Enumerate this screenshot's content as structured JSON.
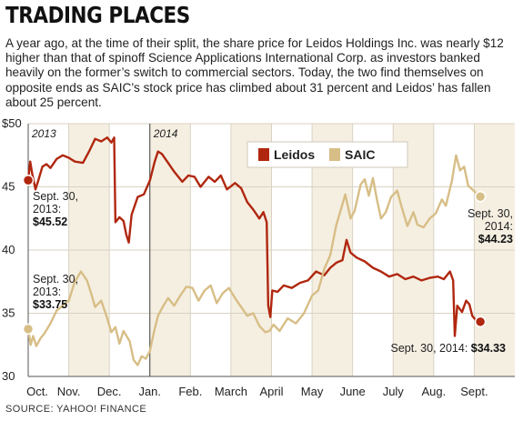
{
  "header": {
    "title": "TRADING PLACES",
    "subtitle": "A year ago, at the time of their split, the share price for Leidos Holdings Inc. was nearly $12 higher than that of spinoff Science Applications International Corp. as investors banked heavily on the former’s switch to commercial sectors. Today, the two find themselves on opposite ends as SAIC’s stock price has climbed about 31 percent and Leidos’ has fallen about 25 percent.",
    "source": "SOURCE: YAHOO! FINANCE"
  },
  "colors": {
    "leidos": "#b0270f",
    "saic": "#d7be86",
    "band": "#f5efe2",
    "grid": "#d9d2c3"
  },
  "chart_data": {
    "type": "line",
    "ylim": [
      30,
      50
    ],
    "y_ticks": [
      30,
      35,
      40,
      45,
      50
    ],
    "y_tick_labels": [
      "30",
      "35",
      "40",
      "45",
      "$50"
    ],
    "months": [
      "Oct.",
      "Nov.",
      "Dec.",
      "Jan.",
      "Feb.",
      "March",
      "April",
      "May",
      "June",
      "July",
      "Aug.",
      "Sept."
    ],
    "year_labels": [
      {
        "label": "2013",
        "month_index": 0
      },
      {
        "label": "2014",
        "month_index": 3
      }
    ],
    "legend": [
      "Leidos",
      "SAIC"
    ],
    "series": [
      {
        "name": "Leidos",
        "color": "#b0270f",
        "points": [
          [
            0,
            45.52
          ],
          [
            0.05,
            47.0
          ],
          [
            0.1,
            46.0
          ],
          [
            0.18,
            44.8
          ],
          [
            0.25,
            45.5
          ],
          [
            0.35,
            46.6
          ],
          [
            0.45,
            46.8
          ],
          [
            0.55,
            46.5
          ],
          [
            0.7,
            47.2
          ],
          [
            0.85,
            47.5
          ],
          [
            1.0,
            47.3
          ],
          [
            1.15,
            47.0
          ],
          [
            1.35,
            46.9
          ],
          [
            1.5,
            47.8
          ],
          [
            1.65,
            48.8
          ],
          [
            1.8,
            48.6
          ],
          [
            1.95,
            48.9
          ],
          [
            2.05,
            48.5
          ],
          [
            2.12,
            48.9
          ],
          [
            2.15,
            42.2
          ],
          [
            2.25,
            42.6
          ],
          [
            2.35,
            42.3
          ],
          [
            2.42,
            41.2
          ],
          [
            2.48,
            40.6
          ],
          [
            2.55,
            42.8
          ],
          [
            2.7,
            44.2
          ],
          [
            2.85,
            44.4
          ],
          [
            3.0,
            45.5
          ],
          [
            3.12,
            47.0
          ],
          [
            3.2,
            47.8
          ],
          [
            3.3,
            47.6
          ],
          [
            3.45,
            46.9
          ],
          [
            3.6,
            46.2
          ],
          [
            3.8,
            45.4
          ],
          [
            3.95,
            45.9
          ],
          [
            4.1,
            45.8
          ],
          [
            4.25,
            45.0
          ],
          [
            4.45,
            45.8
          ],
          [
            4.6,
            45.4
          ],
          [
            4.75,
            45.9
          ],
          [
            4.9,
            44.8
          ],
          [
            5.1,
            45.3
          ],
          [
            5.25,
            44.9
          ],
          [
            5.4,
            43.8
          ],
          [
            5.55,
            43.2
          ],
          [
            5.7,
            42.5
          ],
          [
            5.8,
            43.0
          ],
          [
            5.88,
            42.2
          ],
          [
            5.92,
            35.6
          ],
          [
            5.97,
            34.7
          ],
          [
            6.02,
            36.8
          ],
          [
            6.15,
            36.7
          ],
          [
            6.3,
            37.2
          ],
          [
            6.5,
            37.0
          ],
          [
            6.7,
            37.4
          ],
          [
            6.9,
            37.6
          ],
          [
            7.1,
            38.3
          ],
          [
            7.3,
            38.0
          ],
          [
            7.45,
            38.6
          ],
          [
            7.6,
            39.0
          ],
          [
            7.75,
            39.2
          ],
          [
            7.85,
            40.8
          ],
          [
            7.95,
            39.8
          ],
          [
            8.1,
            39.4
          ],
          [
            8.3,
            39.1
          ],
          [
            8.5,
            38.6
          ],
          [
            8.7,
            38.3
          ],
          [
            8.9,
            37.9
          ],
          [
            9.1,
            38.1
          ],
          [
            9.3,
            37.7
          ],
          [
            9.5,
            37.9
          ],
          [
            9.7,
            37.6
          ],
          [
            9.9,
            37.8
          ],
          [
            10.1,
            37.9
          ],
          [
            10.25,
            37.7
          ],
          [
            10.4,
            38.3
          ],
          [
            10.48,
            37.6
          ],
          [
            10.52,
            33.2
          ],
          [
            10.58,
            35.6
          ],
          [
            10.7,
            35.1
          ],
          [
            10.8,
            36.0
          ],
          [
            10.88,
            35.7
          ],
          [
            10.95,
            34.8
          ],
          [
            11.05,
            34.4
          ],
          [
            11.15,
            34.33
          ]
        ]
      },
      {
        "name": "SAIC",
        "color": "#d7be86",
        "points": [
          [
            0,
            33.75
          ],
          [
            0.06,
            32.5
          ],
          [
            0.12,
            33.2
          ],
          [
            0.2,
            32.4
          ],
          [
            0.3,
            33.0
          ],
          [
            0.4,
            33.4
          ],
          [
            0.55,
            34.2
          ],
          [
            0.7,
            35.2
          ],
          [
            0.85,
            35.6
          ],
          [
            1.0,
            36.0
          ],
          [
            1.15,
            37.5
          ],
          [
            1.3,
            38.3
          ],
          [
            1.45,
            37.6
          ],
          [
            1.55,
            36.6
          ],
          [
            1.65,
            35.5
          ],
          [
            1.8,
            36.0
          ],
          [
            1.95,
            34.6
          ],
          [
            2.05,
            33.5
          ],
          [
            2.15,
            33.9
          ],
          [
            2.25,
            32.6
          ],
          [
            2.35,
            33.6
          ],
          [
            2.5,
            32.8
          ],
          [
            2.6,
            31.3
          ],
          [
            2.7,
            30.9
          ],
          [
            2.8,
            31.6
          ],
          [
            2.9,
            31.4
          ],
          [
            3.0,
            32.0
          ],
          [
            3.1,
            33.5
          ],
          [
            3.2,
            34.8
          ],
          [
            3.3,
            35.4
          ],
          [
            3.45,
            36.2
          ],
          [
            3.6,
            35.6
          ],
          [
            3.75,
            36.4
          ],
          [
            3.9,
            37.1
          ],
          [
            4.05,
            37.0
          ],
          [
            4.2,
            36.0
          ],
          [
            4.35,
            36.8
          ],
          [
            4.5,
            37.2
          ],
          [
            4.65,
            35.8
          ],
          [
            4.8,
            36.6
          ],
          [
            4.95,
            37.0
          ],
          [
            5.1,
            36.2
          ],
          [
            5.25,
            35.5
          ],
          [
            5.4,
            34.8
          ],
          [
            5.55,
            35.0
          ],
          [
            5.7,
            34.0
          ],
          [
            5.85,
            33.5
          ],
          [
            5.95,
            33.6
          ],
          [
            6.05,
            34.1
          ],
          [
            6.2,
            33.6
          ],
          [
            6.4,
            34.6
          ],
          [
            6.6,
            34.2
          ],
          [
            6.8,
            35.0
          ],
          [
            7.0,
            36.4
          ],
          [
            7.15,
            36.8
          ],
          [
            7.3,
            38.5
          ],
          [
            7.45,
            39.6
          ],
          [
            7.6,
            42.0
          ],
          [
            7.72,
            43.3
          ],
          [
            7.82,
            44.4
          ],
          [
            7.95,
            42.5
          ],
          [
            8.05,
            43.1
          ],
          [
            8.2,
            45.2
          ],
          [
            8.3,
            45.6
          ],
          [
            8.4,
            44.3
          ],
          [
            8.5,
            45.7
          ],
          [
            8.6,
            44.0
          ],
          [
            8.7,
            42.5
          ],
          [
            8.82,
            43.0
          ],
          [
            8.95,
            44.2
          ],
          [
            9.1,
            44.7
          ],
          [
            9.2,
            43.5
          ],
          [
            9.35,
            41.9
          ],
          [
            9.5,
            43.0
          ],
          [
            9.6,
            42.0
          ],
          [
            9.75,
            41.8
          ],
          [
            9.9,
            42.5
          ],
          [
            10.05,
            42.9
          ],
          [
            10.2,
            44.0
          ],
          [
            10.3,
            43.5
          ],
          [
            10.45,
            45.5
          ],
          [
            10.55,
            47.5
          ],
          [
            10.65,
            46.3
          ],
          [
            10.75,
            46.6
          ],
          [
            10.85,
            45.1
          ],
          [
            10.95,
            44.8
          ],
          [
            11.05,
            44.5
          ],
          [
            11.15,
            44.23
          ]
        ]
      }
    ],
    "annotations": [
      {
        "line1": "Sept. 30,",
        "line2": "2013:",
        "value": "$45.52"
      },
      {
        "line1": "Sept. 30,",
        "line2": "2013:",
        "value": "$33.75"
      },
      {
        "line1": "Sept. 30,",
        "line2": "2014:",
        "value": "$44.23"
      },
      {
        "line1": "Sept. 30, 2014:",
        "value": "$34.33"
      }
    ]
  }
}
